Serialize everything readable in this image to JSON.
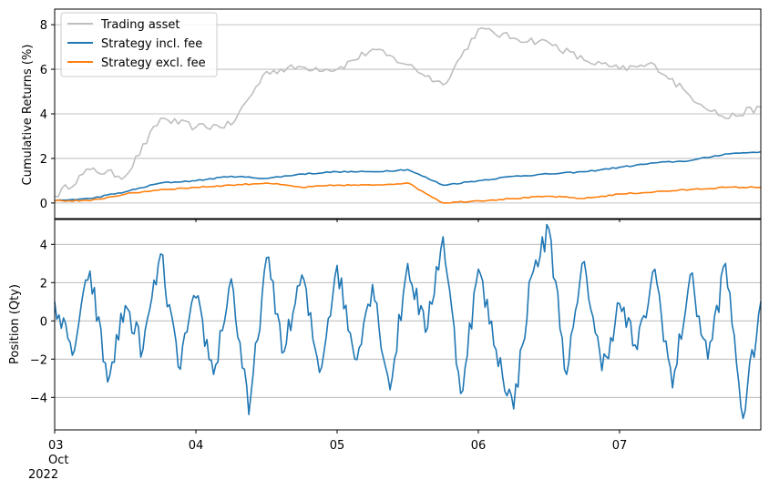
{
  "chart_data": [
    {
      "type": "line",
      "ylabel": "Cumulative Returns (%)",
      "ylim": [
        -0.7,
        8.7
      ],
      "yticks": [
        0,
        2,
        4,
        6,
        8
      ],
      "xlim": [
        "2022-10-03",
        "2022-10-08"
      ],
      "grid": "y",
      "legend_position": "top-left",
      "series": [
        {
          "name": "Trading asset",
          "color": "#bfbfbf",
          "x": [
            "2022-10-03 00:00",
            "2022-10-03 06:00",
            "2022-10-03 12:00",
            "2022-10-03 18:00",
            "2022-10-04 00:00",
            "2022-10-04 06:00",
            "2022-10-04 12:00",
            "2022-10-04 18:00",
            "2022-10-05 00:00",
            "2022-10-05 06:00",
            "2022-10-05 12:00",
            "2022-10-05 18:00",
            "2022-10-06 00:00",
            "2022-10-06 06:00",
            "2022-10-06 12:00",
            "2022-10-06 18:00",
            "2022-10-07 00:00",
            "2022-10-07 06:00",
            "2022-10-07 12:00",
            "2022-10-07 18:00",
            "2022-10-08 00:00"
          ],
          "values": [
            0.3,
            1.5,
            1.2,
            3.8,
            3.4,
            3.5,
            5.9,
            6.1,
            6.0,
            6.9,
            6.2,
            5.3,
            7.8,
            7.4,
            7.2,
            6.4,
            6.0,
            6.2,
            4.8,
            3.8,
            4.3
          ]
        },
        {
          "name": "Strategy incl. fee",
          "color": "#1f77b4",
          "x": [
            "2022-10-03 00:00",
            "2022-10-03 06:00",
            "2022-10-03 12:00",
            "2022-10-03 18:00",
            "2022-10-04 00:00",
            "2022-10-04 06:00",
            "2022-10-04 12:00",
            "2022-10-04 18:00",
            "2022-10-05 00:00",
            "2022-10-05 06:00",
            "2022-10-05 12:00",
            "2022-10-05 18:00",
            "2022-10-06 00:00",
            "2022-10-06 06:00",
            "2022-10-06 12:00",
            "2022-10-06 18:00",
            "2022-10-07 00:00",
            "2022-10-07 06:00",
            "2022-10-07 12:00",
            "2022-10-07 18:00",
            "2022-10-08 00:00"
          ],
          "values": [
            0.1,
            0.2,
            0.5,
            0.9,
            1.0,
            1.2,
            1.1,
            1.3,
            1.4,
            1.4,
            1.5,
            0.8,
            1.0,
            1.2,
            1.3,
            1.4,
            1.6,
            1.8,
            1.9,
            2.2,
            2.3
          ]
        },
        {
          "name": "Strategy excl. fee",
          "color": "#ff7f0e",
          "x": [
            "2022-10-03 00:00",
            "2022-10-03 06:00",
            "2022-10-03 12:00",
            "2022-10-03 18:00",
            "2022-10-04 00:00",
            "2022-10-04 06:00",
            "2022-10-04 12:00",
            "2022-10-04 18:00",
            "2022-10-05 00:00",
            "2022-10-05 06:00",
            "2022-10-05 12:00",
            "2022-10-05 18:00",
            "2022-10-06 00:00",
            "2022-10-06 06:00",
            "2022-10-06 12:00",
            "2022-10-06 18:00",
            "2022-10-07 00:00",
            "2022-10-07 06:00",
            "2022-10-07 12:00",
            "2022-10-07 18:00",
            "2022-10-08 00:00"
          ],
          "values": [
            0.1,
            0.1,
            0.4,
            0.6,
            0.7,
            0.8,
            0.9,
            0.7,
            0.8,
            0.8,
            0.9,
            0.0,
            0.1,
            0.2,
            0.3,
            0.2,
            0.4,
            0.5,
            0.6,
            0.7,
            0.7
          ]
        }
      ]
    },
    {
      "type": "line",
      "ylabel": "Position (Qty)",
      "ylim": [
        -5.7,
        5.3
      ],
      "yticks": [
        -4,
        -2,
        0,
        2,
        4
      ],
      "xlim": [
        "2022-10-03",
        "2022-10-08"
      ],
      "grid": "y",
      "x_ticks": [
        {
          "date": "2022-10-03",
          "label": "03",
          "sublabel": "Oct",
          "year": "2022"
        },
        {
          "date": "2022-10-04",
          "label": "04"
        },
        {
          "date": "2022-10-05",
          "label": "05"
        },
        {
          "date": "2022-10-06",
          "label": "06"
        },
        {
          "date": "2022-10-07",
          "label": "07"
        }
      ],
      "series": [
        {
          "color": "#1f77b4",
          "x": [
            "2022-10-03 00:00",
            "2022-10-03 03:00",
            "2022-10-03 06:00",
            "2022-10-03 09:00",
            "2022-10-03 12:00",
            "2022-10-03 15:00",
            "2022-10-03 18:00",
            "2022-10-03 21:00",
            "2022-10-04 00:00",
            "2022-10-04 03:00",
            "2022-10-04 06:00",
            "2022-10-04 09:00",
            "2022-10-04 12:00",
            "2022-10-04 15:00",
            "2022-10-04 18:00",
            "2022-10-04 21:00",
            "2022-10-05 00:00",
            "2022-10-05 03:00",
            "2022-10-05 06:00",
            "2022-10-05 09:00",
            "2022-10-05 12:00",
            "2022-10-05 15:00",
            "2022-10-05 18:00",
            "2022-10-05 21:00",
            "2022-10-06 00:00",
            "2022-10-06 03:00",
            "2022-10-06 06:00",
            "2022-10-06 09:00",
            "2022-10-06 12:00",
            "2022-10-06 15:00",
            "2022-10-06 18:00",
            "2022-10-06 21:00",
            "2022-10-07 00:00",
            "2022-10-07 03:00",
            "2022-10-07 06:00",
            "2022-10-07 09:00",
            "2022-10-07 12:00",
            "2022-10-07 15:00",
            "2022-10-07 18:00",
            "2022-10-07 21:00",
            "2022-10-08 00:00"
          ],
          "values": [
            1.0,
            -1.8,
            2.6,
            -3.2,
            0.8,
            -1.5,
            3.5,
            -2.4,
            1.2,
            -2.8,
            2.2,
            -4.9,
            3.3,
            -1.6,
            2.4,
            -2.7,
            2.9,
            -2.0,
            1.9,
            -3.6,
            3.0,
            -0.6,
            4.4,
            -3.8,
            2.7,
            -1.5,
            -4.6,
            2.3,
            4.8,
            -2.8,
            3.1,
            -2.6,
            0.9,
            -1.5,
            2.7,
            -3.5,
            2.4,
            -2.0,
            3.0,
            -5.1,
            1.0
          ]
        }
      ]
    }
  ]
}
